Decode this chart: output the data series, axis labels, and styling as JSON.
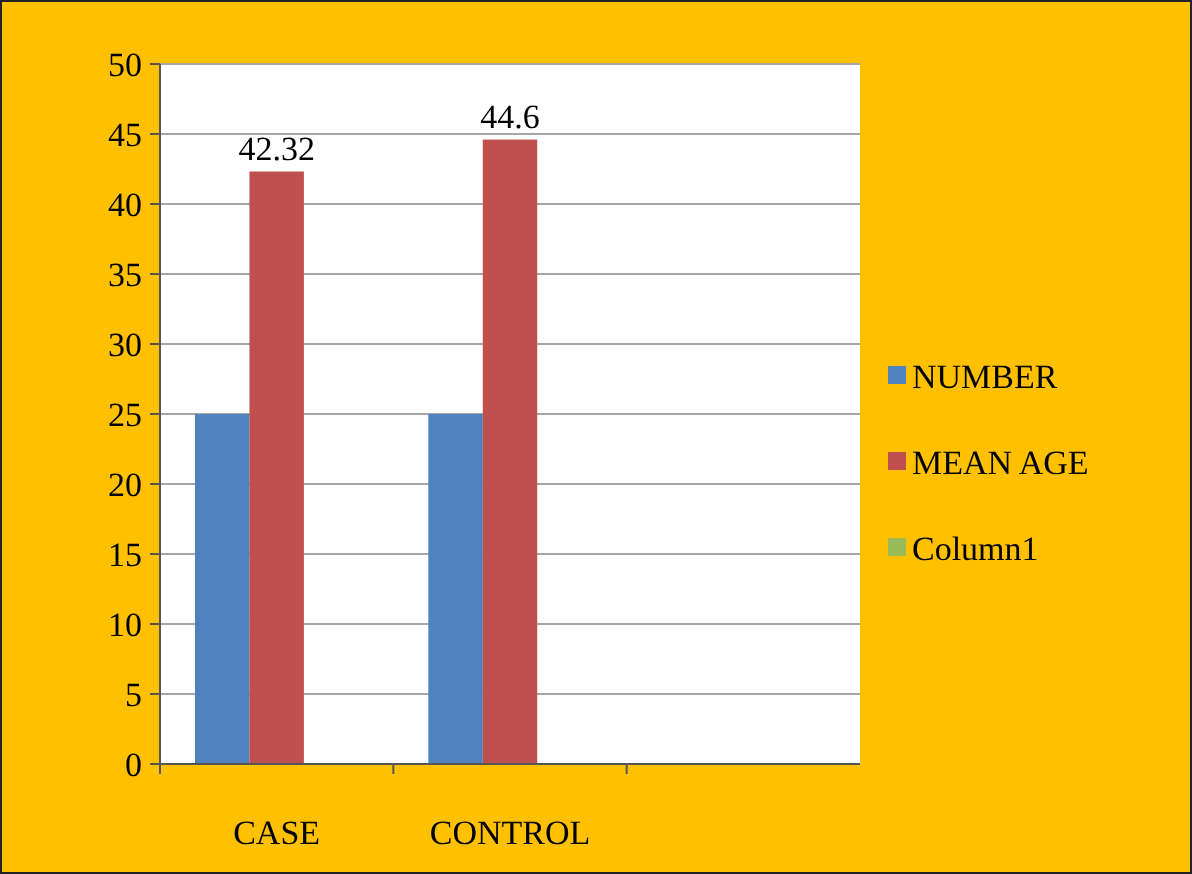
{
  "chart_data": {
    "type": "bar",
    "categories": [
      "CASE",
      "CONTROL",
      null
    ],
    "series": [
      {
        "name": "NUMBER",
        "color": "#4f81bd",
        "values": [
          25,
          25,
          null
        ]
      },
      {
        "name": "MEAN AGE",
        "color": "#c0504d",
        "values": [
          42.32,
          44.6,
          null
        ],
        "value_labels": [
          "42.32",
          "44.6",
          null
        ]
      },
      {
        "name": "Column1",
        "color": "#9bbb59",
        "values": [
          null,
          null,
          null
        ]
      }
    ],
    "ylim": [
      0,
      50
    ],
    "yticks": [
      0,
      5,
      10,
      15,
      20,
      25,
      30,
      35,
      40,
      45,
      50
    ],
    "grid": "y",
    "legend": "right"
  }
}
